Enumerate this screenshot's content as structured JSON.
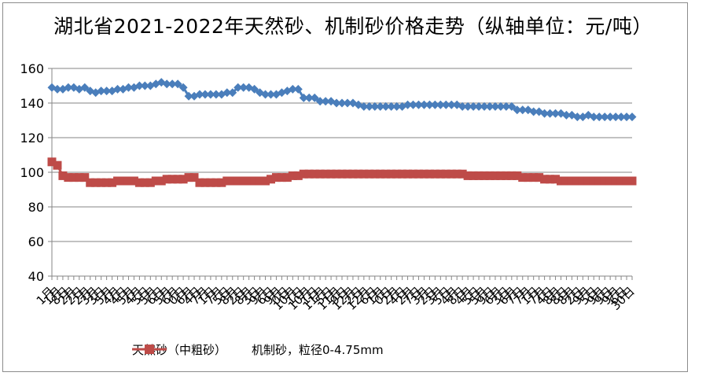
{
  "chart_data": {
    "type": "line",
    "title": "湖北省2021-2022年天然砂、机制砂价格走势（纵轴单位：元/吨）",
    "ylim": [
      40,
      160
    ],
    "yticks": [
      40,
      60,
      80,
      100,
      120,
      140,
      160
    ],
    "grid": true,
    "legend_position": "bottom",
    "x_tick_labels": [
      "1月",
      "1月",
      "8日",
      "2月",
      "2日",
      "2月",
      "3月",
      "3日",
      "5月",
      "4月",
      "4日",
      "5月",
      "4月",
      "5日",
      "5月",
      "6日",
      "5月",
      "6月",
      "0日",
      "6月",
      "4日",
      "7月",
      "1日",
      "7月",
      "5日",
      "8月",
      "2日",
      "8月",
      "3日",
      "9月",
      "6日",
      "9月",
      "0日",
      "10月",
      "1日",
      "10月",
      "1日",
      "11月",
      "5日",
      "11月",
      "9日",
      "12月",
      "2日",
      "12月",
      "6日",
      "1月",
      "0日",
      "2月",
      "4日",
      "2月",
      "7日",
      "3月",
      "2日",
      "3月",
      "5日",
      "4月",
      "8日",
      "4月",
      "5日",
      "5月",
      "9日",
      "6月",
      "3日",
      "6月",
      "7日",
      "7月",
      "1日",
      "7月",
      "4日",
      "8月",
      "8日",
      "8月",
      "2日",
      "9月",
      "5日",
      "9月",
      "9日",
      "9月",
      "6日",
      "30日"
    ],
    "series": [
      {
        "name": "天然砂（中粗砂）",
        "color": "#4a7ebb",
        "marker": "diamond",
        "values": [
          149,
          148,
          148,
          149,
          149,
          148,
          149,
          147,
          146,
          147,
          147,
          147,
          148,
          148,
          149,
          149,
          150,
          150,
          150,
          151,
          152,
          151,
          151,
          151,
          149,
          144,
          144,
          145,
          145,
          145,
          145,
          145,
          146,
          146,
          149,
          149,
          149,
          148,
          146,
          145,
          145,
          145,
          146,
          147,
          148,
          148,
          143,
          143,
          143,
          141,
          141,
          141,
          140,
          140,
          140,
          140,
          139,
          138,
          138,
          138,
          138,
          138,
          138,
          138,
          138,
          139,
          139,
          139,
          139,
          139,
          139,
          139,
          139,
          139,
          139,
          138,
          138,
          138,
          138,
          138,
          138,
          138,
          138,
          138,
          138,
          136,
          136,
          136,
          135,
          135,
          134,
          134,
          134,
          134,
          133,
          133,
          132,
          132,
          133,
          132,
          132,
          132,
          132,
          132,
          132,
          132,
          132
        ]
      },
      {
        "name": "机制砂，粒径0-4.75mm",
        "color": "#be4b48",
        "marker": "square",
        "values": [
          106,
          104,
          98,
          97,
          97,
          97,
          97,
          94,
          94,
          94,
          94,
          94,
          95,
          95,
          95,
          95,
          94,
          94,
          94,
          95,
          95,
          96,
          96,
          96,
          96,
          97,
          97,
          94,
          94,
          94,
          94,
          94,
          95,
          95,
          95,
          95,
          95,
          95,
          95,
          95,
          96,
          97,
          97,
          97,
          98,
          98,
          99,
          99,
          99,
          99,
          99,
          99,
          99,
          99,
          99,
          99,
          99,
          99,
          99,
          99,
          99,
          99,
          99,
          99,
          99,
          99,
          99,
          99,
          99,
          99,
          99,
          99,
          99,
          99,
          99,
          99,
          98,
          98,
          98,
          98,
          98,
          98,
          98,
          98,
          98,
          98,
          97,
          97,
          97,
          97,
          96,
          96,
          96,
          95,
          95,
          95,
          95,
          95,
          95,
          95,
          95,
          95,
          95,
          95,
          95,
          95,
          95
        ]
      }
    ]
  }
}
